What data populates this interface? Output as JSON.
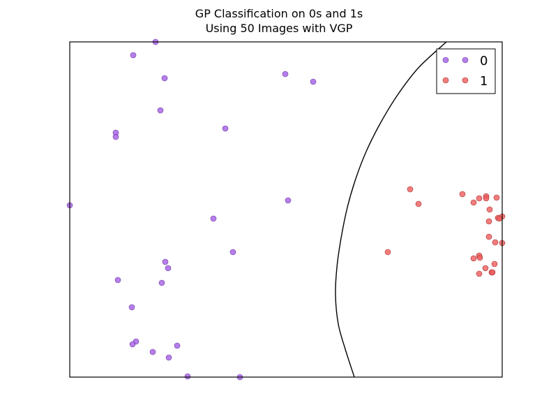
{
  "chart_data": {
    "type": "scatter",
    "title_line1": "GP Classification on 0s and 1s",
    "title_line2": "Using 50 Images with VGP",
    "xlim": [
      0,
      620
    ],
    "ylim": [
      0,
      480
    ],
    "grid": false,
    "ticks_visible": false,
    "legend_position": "top-right",
    "series": [
      {
        "name": "0",
        "color": "#a45ee5",
        "edge": "#6a3aa0",
        "points": [
          [
            123,
            480
          ],
          [
            91,
            461
          ],
          [
            136,
            428
          ],
          [
            309,
            434
          ],
          [
            349,
            423
          ],
          [
            130,
            382
          ],
          [
            223,
            356
          ],
          [
            66,
            350
          ],
          [
            66,
            344
          ],
          [
            0,
            246
          ],
          [
            313,
            253
          ],
          [
            206,
            227
          ],
          [
            234,
            179
          ],
          [
            137,
            165
          ],
          [
            141,
            156
          ],
          [
            69,
            139
          ],
          [
            132,
            135
          ],
          [
            89,
            100
          ],
          [
            95,
            51
          ],
          [
            90,
            47
          ],
          [
            154,
            45
          ],
          [
            119,
            36
          ],
          [
            142,
            28
          ],
          [
            169,
            1
          ],
          [
            244,
            0
          ]
        ]
      },
      {
        "name": "1",
        "color": "#f05b5b",
        "edge": "#a03030",
        "points": [
          [
            488,
            269
          ],
          [
            563,
            262
          ],
          [
            597,
            259
          ],
          [
            612,
            257
          ],
          [
            587,
            256
          ],
          [
            597,
            256
          ],
          [
            579,
            250
          ],
          [
            500,
            248
          ],
          [
            602,
            240
          ],
          [
            614,
            228
          ],
          [
            620,
            230
          ],
          [
            601,
            223
          ],
          [
            616,
            227
          ],
          [
            601,
            201
          ],
          [
            610,
            193
          ],
          [
            620,
            192
          ],
          [
            456,
            179
          ],
          [
            587,
            174
          ],
          [
            588,
            171
          ],
          [
            579,
            170
          ],
          [
            609,
            162
          ],
          [
            596,
            156
          ],
          [
            605,
            150
          ],
          [
            606,
            150
          ],
          [
            587,
            148
          ]
        ]
      }
    ],
    "decision_boundary": [
      [
        540,
        480
      ],
      [
        500,
        443
      ],
      [
        470,
        404
      ],
      [
        445,
        363
      ],
      [
        425,
        323
      ],
      [
        410,
        284
      ],
      [
        398,
        243
      ],
      [
        389,
        199
      ],
      [
        383,
        157
      ],
      [
        381,
        117
      ],
      [
        385,
        76
      ],
      [
        395,
        40
      ],
      [
        408,
        0
      ]
    ]
  }
}
